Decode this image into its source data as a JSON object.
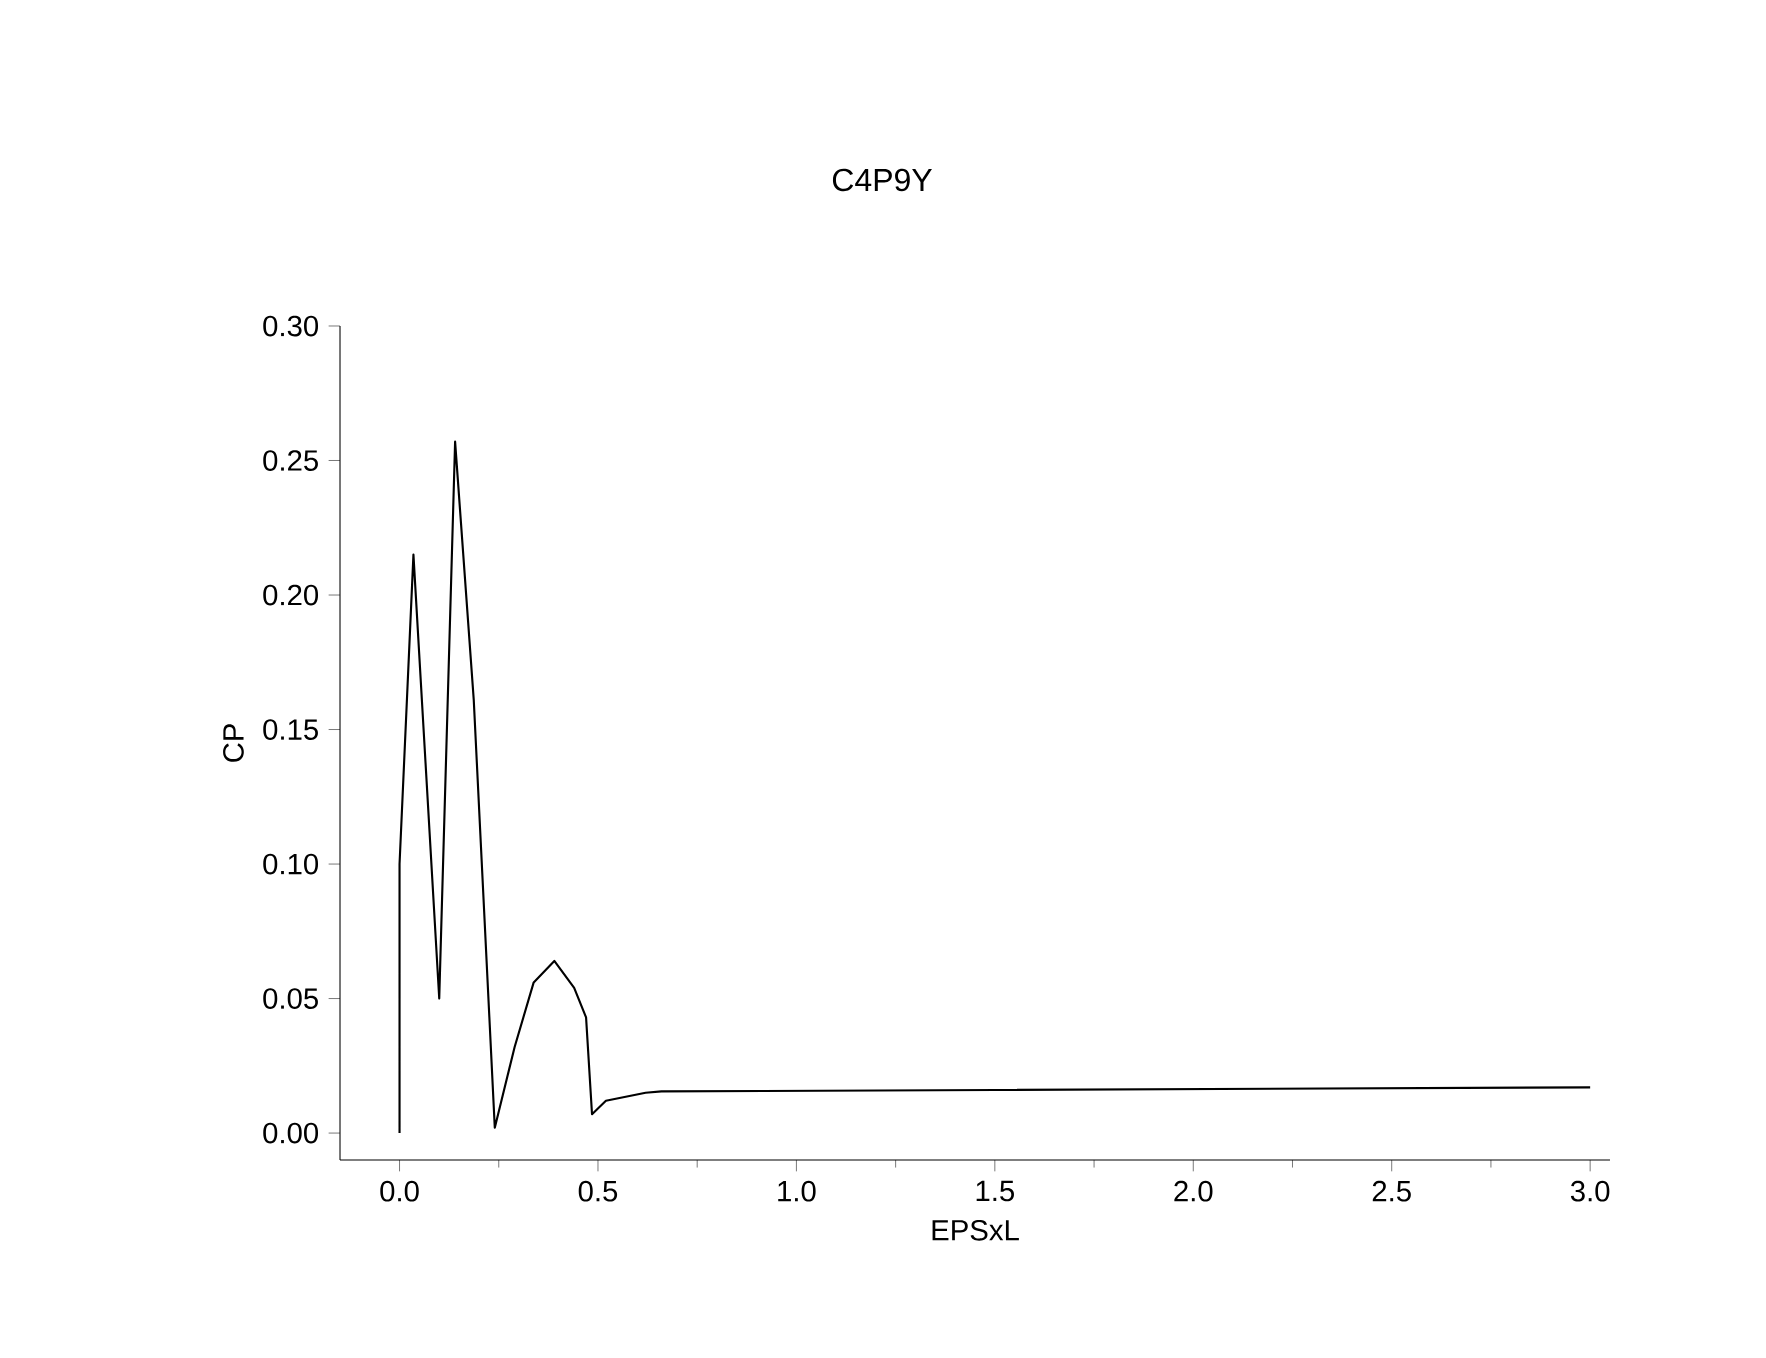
{
  "chart_data": {
    "type": "line",
    "title": "C4P9Y",
    "xlabel": "EPSxL",
    "ylabel": "CP",
    "xlim": [
      -0.15,
      3.05
    ],
    "ylim": [
      -0.01,
      0.3
    ],
    "xticks": [
      {
        "value": 0,
        "label": "0.0"
      },
      0.5,
      {
        "value": 1,
        "label": "1.0"
      },
      1.5,
      {
        "value": 2,
        "label": "2.0"
      },
      2.5,
      {
        "value": 3,
        "label": "3.0"
      }
    ],
    "yticks": [
      {
        "value": 0,
        "label": "0.00"
      },
      0.05,
      {
        "value": 0.1,
        "label": "0.10"
      },
      0.15,
      {
        "value": 0.2,
        "label": "0.20"
      },
      0.25,
      {
        "value": 0.3,
        "label": "0.30"
      }
    ],
    "grid": false,
    "marker": "none",
    "line_style": "solid",
    "series": [
      {
        "color": "#000000",
        "x": [
          0.0,
          0.0,
          0.035,
          0.1,
          0.14,
          0.187,
          0.24,
          0.29,
          0.338,
          0.39,
          0.44,
          0.47,
          0.485,
          0.52,
          0.62,
          0.66,
          1.5,
          3.0
        ],
        "values": [
          0.0,
          0.1,
          0.215,
          0.05,
          0.257,
          0.161,
          0.002,
          0.032,
          0.056,
          0.064,
          0.054,
          0.043,
          0.007,
          0.012,
          0.015,
          0.0155,
          0.016,
          0.017
        ]
      }
    ]
  }
}
